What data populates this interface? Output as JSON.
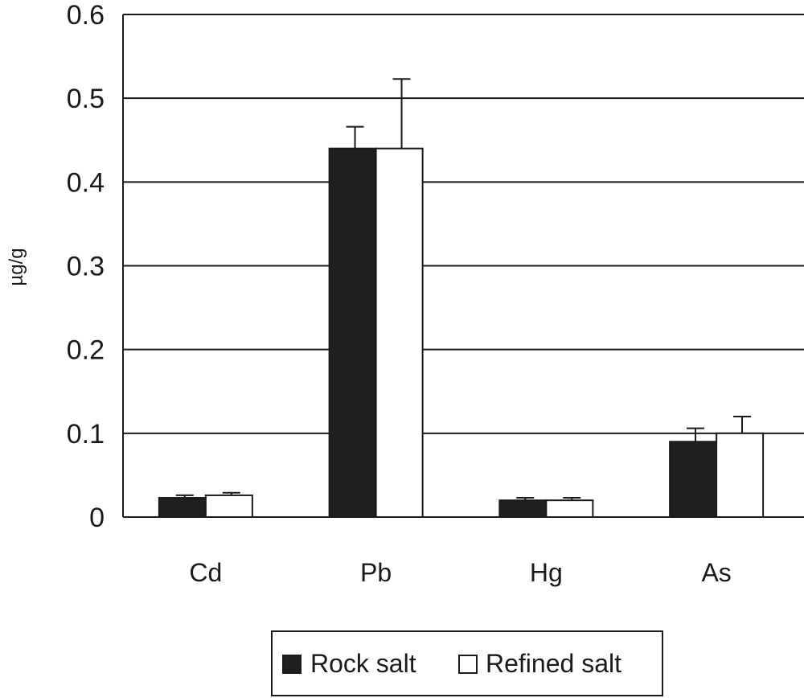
{
  "chart_data": {
    "type": "bar",
    "categories": [
      "Cd",
      "Pb",
      "Hg",
      "As"
    ],
    "series": [
      {
        "name": "Rock salt",
        "values": [
          0.023,
          0.44,
          0.02,
          0.09
        ],
        "errors": [
          0.003,
          0.026,
          0.003,
          0.016
        ],
        "color": "#1f1f1f"
      },
      {
        "name": "Refined salt",
        "values": [
          0.026,
          0.44,
          0.02,
          0.1
        ],
        "errors": [
          0.003,
          0.083,
          0.003,
          0.02
        ],
        "color": "#ffffff"
      }
    ],
    "title": "",
    "xlabel": "",
    "ylabel": "µg/g",
    "ylim": [
      0,
      0.6
    ],
    "yticks": [
      "0",
      "0.1",
      "0.2",
      "0.3",
      "0.4",
      "0.5",
      "0.6"
    ],
    "grid": true,
    "legend_position": "bottom"
  }
}
